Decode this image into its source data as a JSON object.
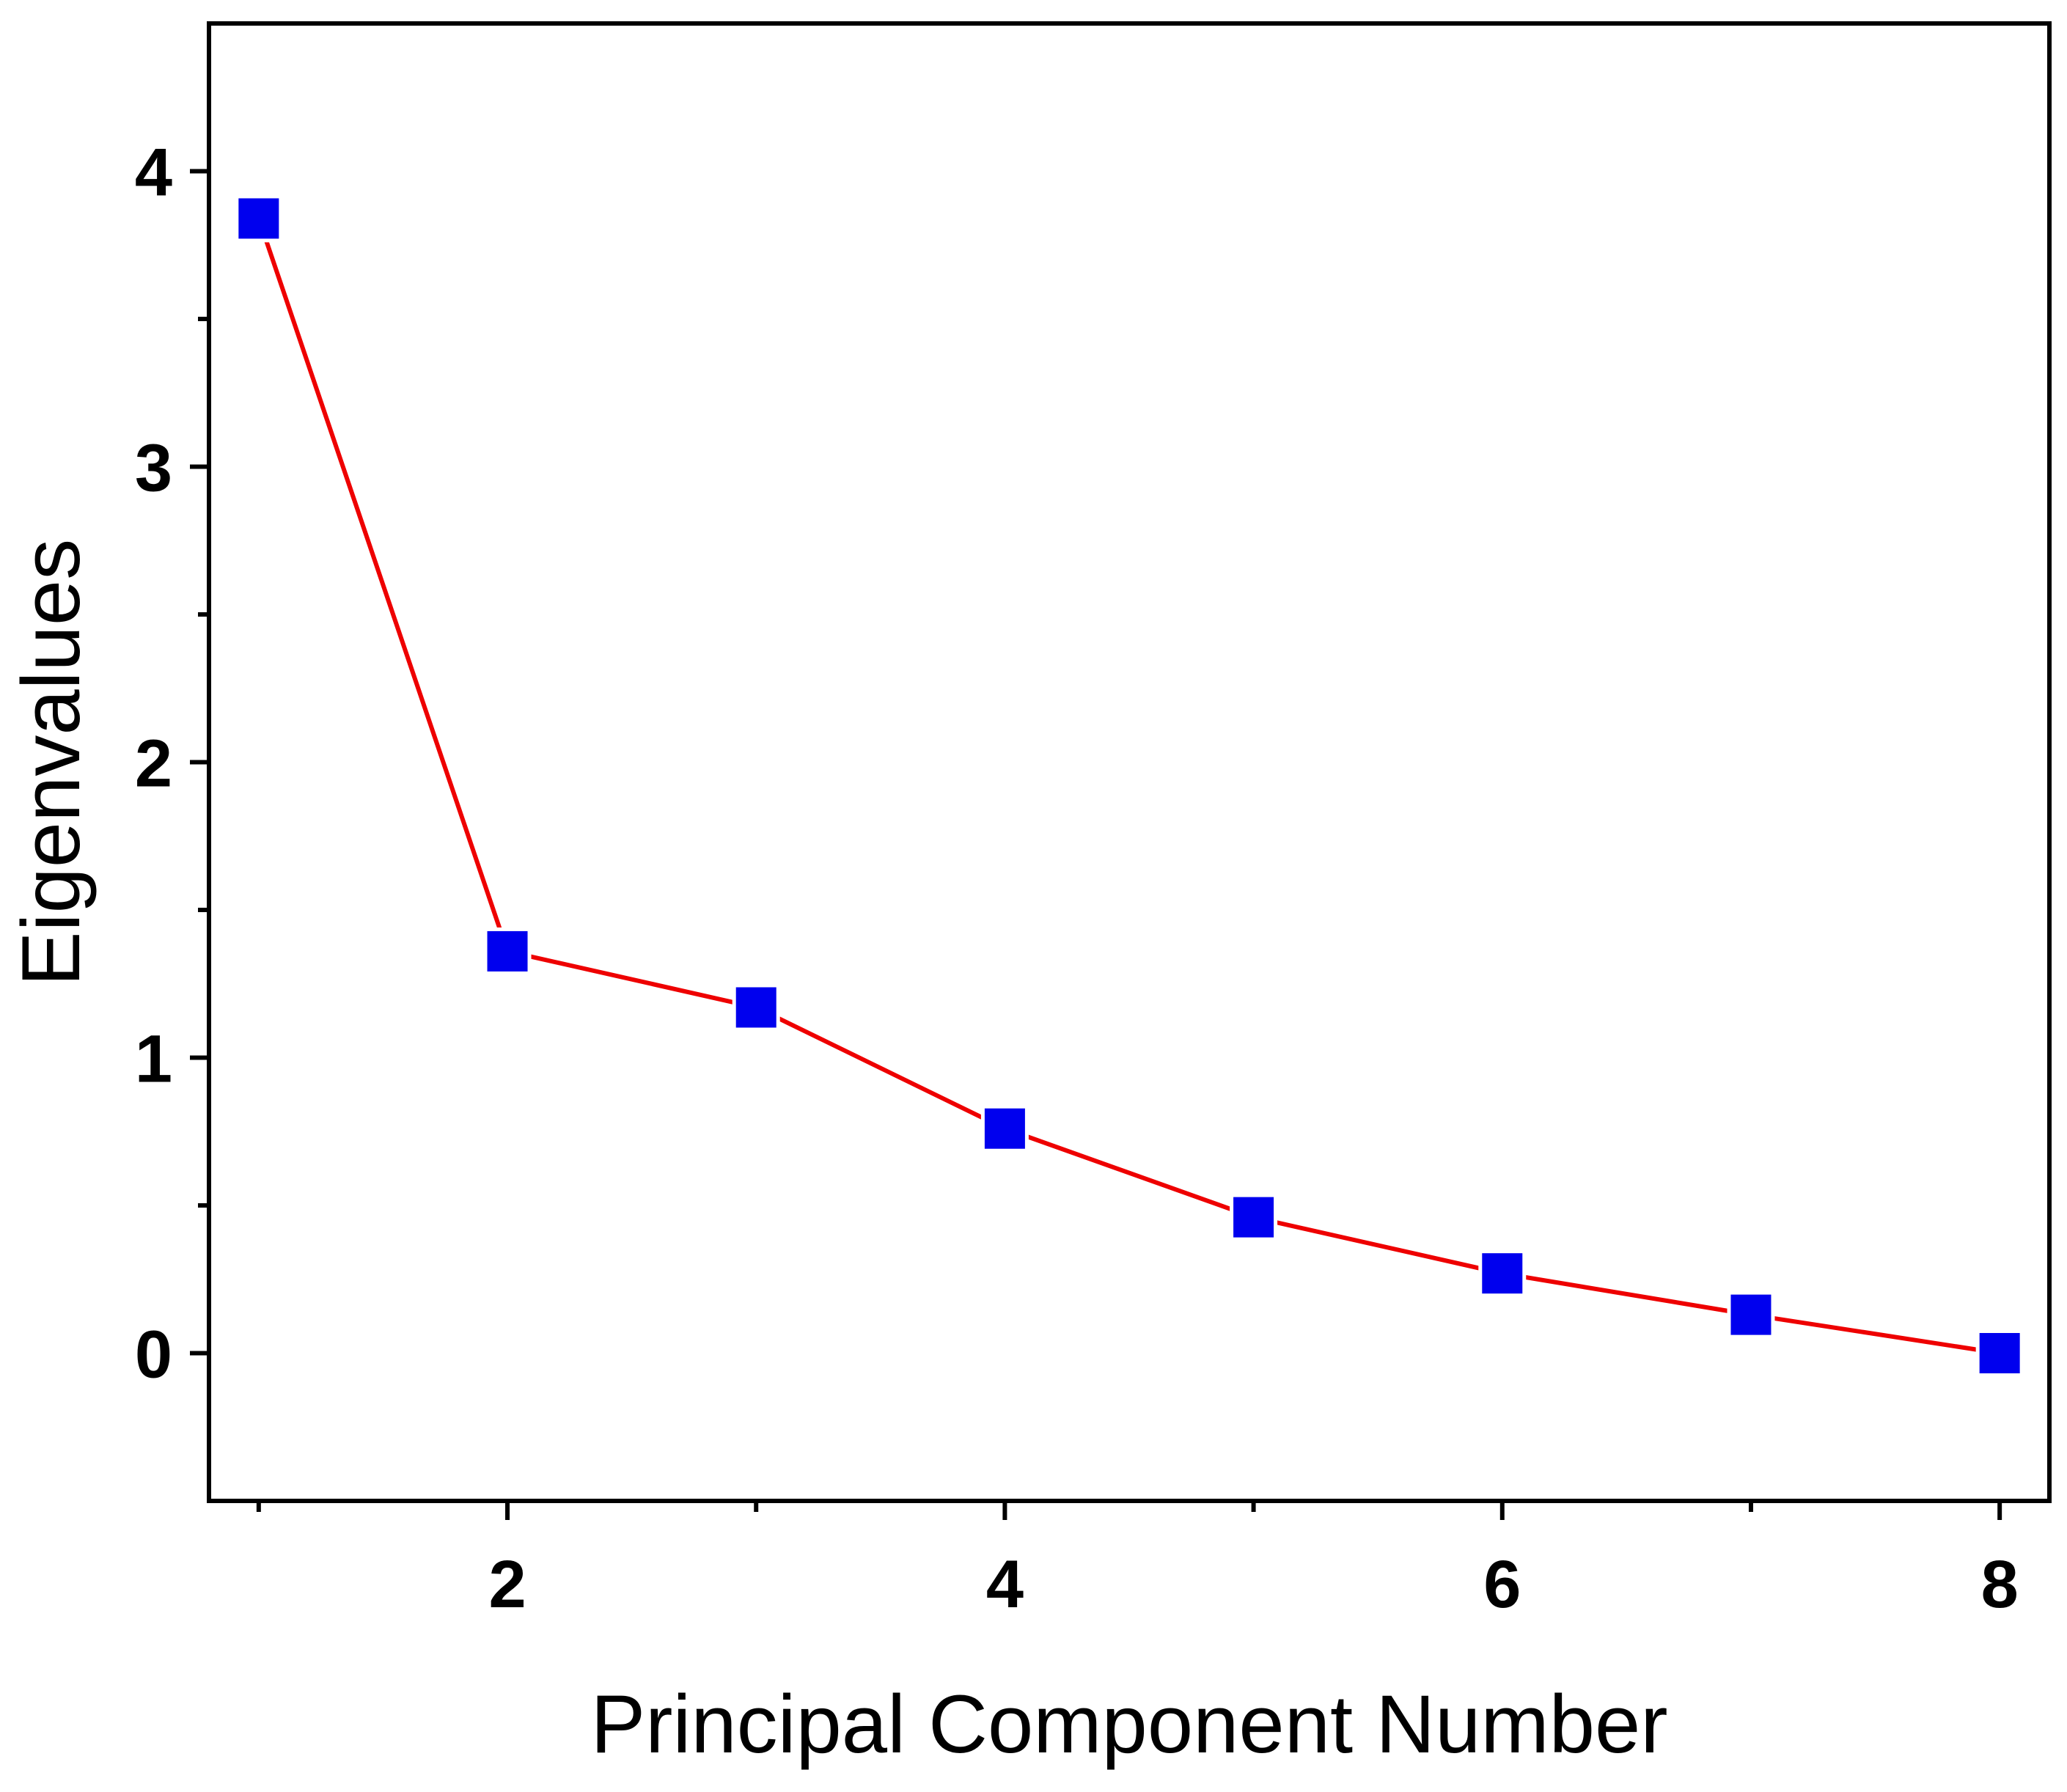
{
  "chart_data": {
    "type": "line",
    "title": "",
    "xlabel": "Principal Component Number",
    "ylabel": "Eigenvalues",
    "xlim": [
      0.8,
      8.2
    ],
    "ylim": [
      -0.5,
      4.5
    ],
    "xticks": [
      2,
      4,
      6,
      8
    ],
    "xticks_minor": [
      1,
      3,
      5,
      7
    ],
    "yticks": [
      0,
      1,
      2,
      3,
      4
    ],
    "yticks_minor": [
      0.5,
      1.5,
      2.5,
      3.5
    ],
    "xtick_labels": [
      "2",
      "4",
      "6",
      "8"
    ],
    "ytick_labels": [
      "0",
      "1",
      "2",
      "3",
      "4"
    ],
    "grid": false,
    "legend": "none",
    "series": [
      {
        "x": [
          1,
          2,
          3,
          4,
          5,
          6,
          7,
          8
        ],
        "values": [
          3.84,
          1.36,
          1.17,
          0.76,
          0.46,
          0.27,
          0.13,
          0.0
        ],
        "line_color": "#ee0000",
        "marker": "square",
        "marker_color": "#0000ee"
      }
    ]
  }
}
